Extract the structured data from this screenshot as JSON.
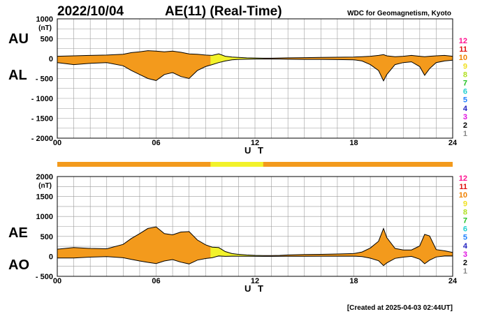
{
  "header": {
    "date": "2022/10/04",
    "title": "AE(11) (Real-Time)",
    "source": "WDC for Geomagnetism, Kyoto"
  },
  "footer": {
    "created": "[Created at 2025-04-03 02:44UT]"
  },
  "colors": {
    "fill_main": "#f39a1c",
    "fill_low": "#f2f22a",
    "outline": "#000000",
    "grid": "#9a9a9a",
    "station_scale": [
      "#c8c8c8",
      "#888888",
      "#000000",
      "#e010e0",
      "#2020c0",
      "#2080ff",
      "#20d0d0",
      "#20c020",
      "#b0e020",
      "#f0e020",
      "#f08000",
      "#e01010",
      "#ff1090"
    ]
  },
  "chart_data": [
    {
      "type": "area",
      "panel": "AU/AL",
      "series_labels": [
        "AU",
        "AL"
      ],
      "unit": "(nT)",
      "xlabel": "U T",
      "xlim": [
        0,
        24
      ],
      "xticks": [
        "00",
        "06",
        "12",
        "18",
        "24"
      ],
      "ylim": [
        -2000,
        1000
      ],
      "yticks": [
        "1000",
        "500",
        "0",
        "- 500",
        "- 1000",
        "- 1500",
        "- 2000"
      ],
      "station_count_scale": [
        "12",
        "11",
        "10",
        "9",
        "8",
        "7",
        "6",
        "5",
        "4",
        "3",
        "2",
        "1"
      ],
      "x": [
        0,
        1,
        2,
        3,
        4,
        4.5,
        5,
        5.5,
        6,
        6.5,
        7,
        7.5,
        8,
        8.5,
        9,
        9.4,
        9.8,
        10.2,
        10.6,
        11,
        11.5,
        12,
        12.5,
        13,
        13.5,
        14,
        15,
        16,
        17,
        18,
        18.5,
        19,
        19.5,
        19.8,
        20,
        20.5,
        21,
        21.5,
        22,
        22.3,
        22.6,
        23,
        23.5,
        24
      ],
      "series": [
        {
          "label": "AU",
          "values": [
            60,
            70,
            80,
            90,
            110,
            150,
            170,
            200,
            190,
            170,
            190,
            160,
            120,
            110,
            90,
            80,
            120,
            60,
            40,
            30,
            20,
            15,
            10,
            10,
            15,
            20,
            25,
            30,
            35,
            40,
            50,
            60,
            80,
            100,
            70,
            50,
            60,
            80,
            60,
            50,
            60,
            70,
            80,
            60
          ]
        },
        {
          "label": "AL",
          "values": [
            -100,
            -150,
            -120,
            -100,
            -180,
            -300,
            -400,
            -500,
            -550,
            -400,
            -350,
            -450,
            -500,
            -300,
            -200,
            -150,
            -100,
            -60,
            -30,
            -20,
            -15,
            -10,
            -10,
            -10,
            -10,
            -15,
            -20,
            -20,
            -25,
            -30,
            -60,
            -150,
            -300,
            -560,
            -400,
            -150,
            -100,
            -80,
            -200,
            -420,
            -250,
            -100,
            -60,
            -40
          ]
        }
      ],
      "low_station_interval": [
        9.3,
        12.5
      ]
    },
    {
      "type": "area",
      "panel": "AE/AO",
      "series_labels": [
        "AE",
        "AO"
      ],
      "unit": "(nT)",
      "xlabel": "U T",
      "xlim": [
        0,
        24
      ],
      "xticks": [
        "00",
        "06",
        "12",
        "18",
        "24"
      ],
      "ylim": [
        -500,
        2000
      ],
      "yticks": [
        "2000",
        "1500",
        "1000",
        "500",
        "0",
        "- 500"
      ],
      "station_count_scale": [
        "12",
        "11",
        "10",
        "9",
        "8",
        "7",
        "6",
        "5",
        "4",
        "3",
        "2",
        "1"
      ],
      "x": [
        0,
        1,
        2,
        3,
        4,
        4.5,
        5,
        5.5,
        6,
        6.5,
        7,
        7.5,
        8,
        8.5,
        9,
        9.4,
        9.8,
        10.2,
        10.6,
        11,
        11.5,
        12,
        12.5,
        13,
        13.5,
        14,
        15,
        16,
        17,
        18,
        18.5,
        19,
        19.5,
        19.8,
        20,
        20.5,
        21,
        21.5,
        22,
        22.3,
        22.6,
        23,
        23.5,
        24
      ],
      "series": [
        {
          "label": "AE",
          "values": [
            180,
            220,
            200,
            190,
            300,
            450,
            570,
            700,
            740,
            570,
            540,
            610,
            620,
            410,
            290,
            230,
            220,
            120,
            70,
            50,
            35,
            25,
            20,
            20,
            25,
            35,
            45,
            50,
            60,
            70,
            110,
            210,
            380,
            700,
            470,
            200,
            160,
            160,
            260,
            550,
            510,
            170,
            140,
            100
          ]
        },
        {
          "label": "AO",
          "values": [
            -40,
            -40,
            -20,
            -5,
            -35,
            -75,
            -115,
            -150,
            -180,
            -115,
            -80,
            -145,
            -190,
            -95,
            -55,
            -35,
            10,
            0,
            5,
            5,
            3,
            3,
            0,
            0,
            3,
            3,
            3,
            5,
            5,
            5,
            -5,
            -45,
            -110,
            -230,
            -165,
            -50,
            -20,
            0,
            -70,
            -185,
            -95,
            -15,
            10,
            10
          ]
        }
      ],
      "low_station_interval": [
        9.3,
        12.5
      ]
    }
  ]
}
